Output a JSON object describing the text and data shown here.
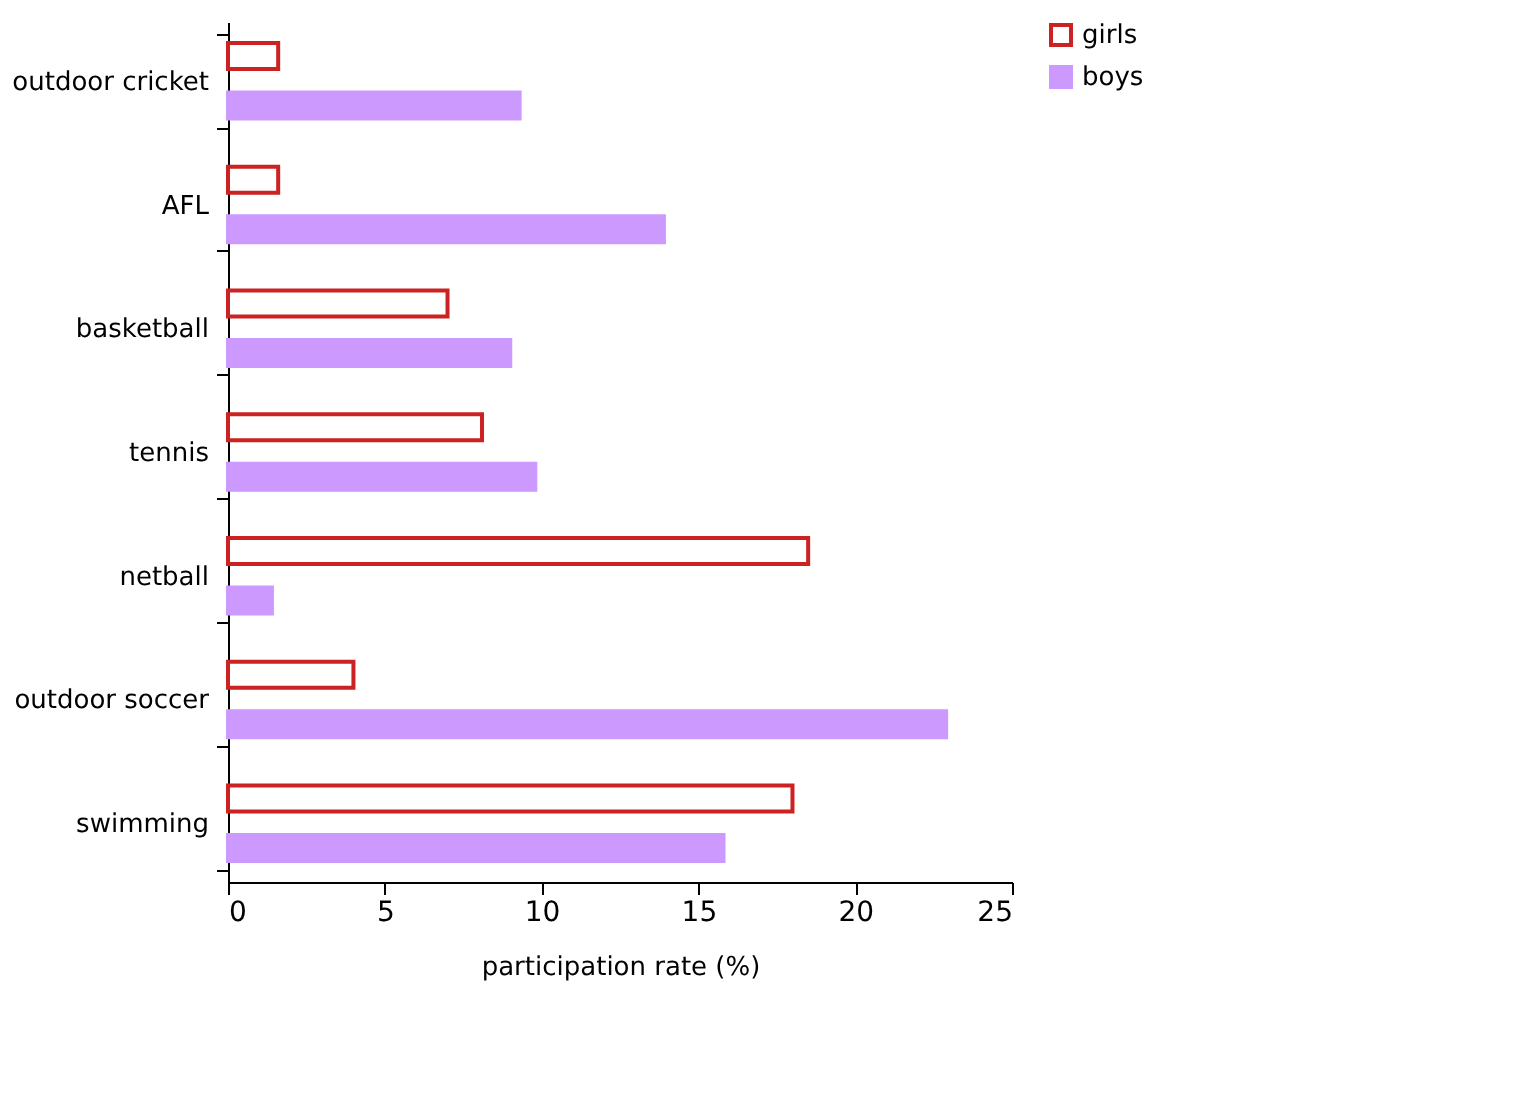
{
  "chart_data": {
    "type": "bar",
    "orientation": "horizontal",
    "xlabel": "participation rate (%)",
    "categories": [
      "outdoor cricket",
      "AFL",
      "basketball",
      "tennis",
      "netball",
      "outdoor soccer",
      "swimming"
    ],
    "series": [
      {
        "name": "girls",
        "color": "#cc2222",
        "values": [
          1.6,
          1.6,
          7.0,
          8.1,
          18.5,
          4.0,
          18.0
        ]
      },
      {
        "name": "boys",
        "color": "#cc99ff",
        "values": [
          9.3,
          13.9,
          9.0,
          9.8,
          1.4,
          22.9,
          15.8
        ]
      }
    ],
    "xlim": [
      0,
      25
    ],
    "xticks": [
      0,
      5,
      10,
      15,
      20,
      25
    ],
    "grid": false,
    "legend": "right"
  }
}
